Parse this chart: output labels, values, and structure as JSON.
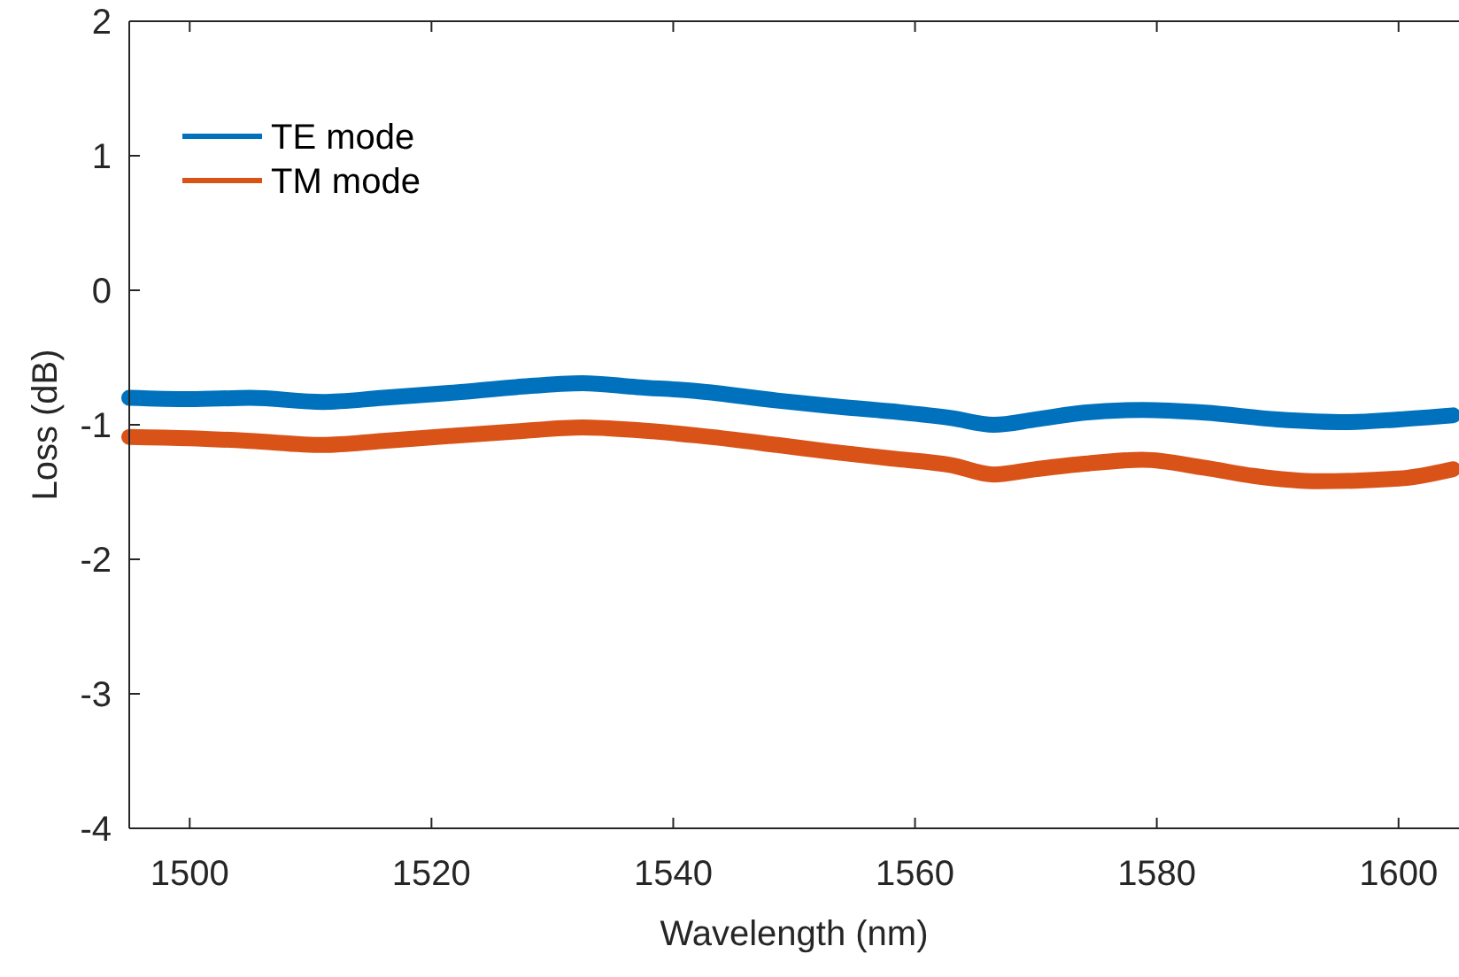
{
  "chart_data": {
    "type": "line",
    "xlabel": "Wavelength (nm)",
    "ylabel": "Loss (dB)",
    "xlim": [
      1495,
      1605
    ],
    "ylim": [
      -4,
      2
    ],
    "xticks": [
      1500,
      1520,
      1540,
      1560,
      1580,
      1600
    ],
    "yticks": [
      -4,
      -3,
      -2,
      -1,
      0,
      1,
      2
    ],
    "grid": false,
    "legend": "top left",
    "line_style": "solid",
    "series": [
      {
        "name": "TE mode",
        "color": "#0072bd",
        "x": [
          1495,
          1500,
          1505,
          1511,
          1516,
          1522,
          1527,
          1532.5,
          1537,
          1542,
          1548.6,
          1553,
          1558,
          1563,
          1566.5,
          1570,
          1574,
          1578.8,
          1584,
          1590,
          1595.7,
          1600,
          1604.5
        ],
        "values": [
          -0.8,
          -0.81,
          -0.8,
          -0.83,
          -0.8,
          -0.76,
          -0.72,
          -0.69,
          -0.72,
          -0.75,
          -0.82,
          -0.86,
          -0.9,
          -0.95,
          -1.0,
          -0.96,
          -0.91,
          -0.89,
          -0.91,
          -0.96,
          -0.98,
          -0.96,
          -0.93
        ]
      },
      {
        "name": "TM mode",
        "color": "#d95319",
        "x": [
          1495,
          1500,
          1505,
          1511,
          1516,
          1522,
          1527,
          1532.5,
          1537,
          1542,
          1548.6,
          1553,
          1558,
          1563,
          1566.5,
          1570,
          1574,
          1578.8,
          1584,
          1588,
          1593.4,
          1600,
          1604.5
        ],
        "values": [
          -1.09,
          -1.1,
          -1.12,
          -1.15,
          -1.12,
          -1.08,
          -1.05,
          -1.02,
          -1.04,
          -1.08,
          -1.15,
          -1.2,
          -1.25,
          -1.3,
          -1.37,
          -1.33,
          -1.29,
          -1.26,
          -1.32,
          -1.38,
          -1.42,
          -1.4,
          -1.33
        ]
      }
    ]
  }
}
